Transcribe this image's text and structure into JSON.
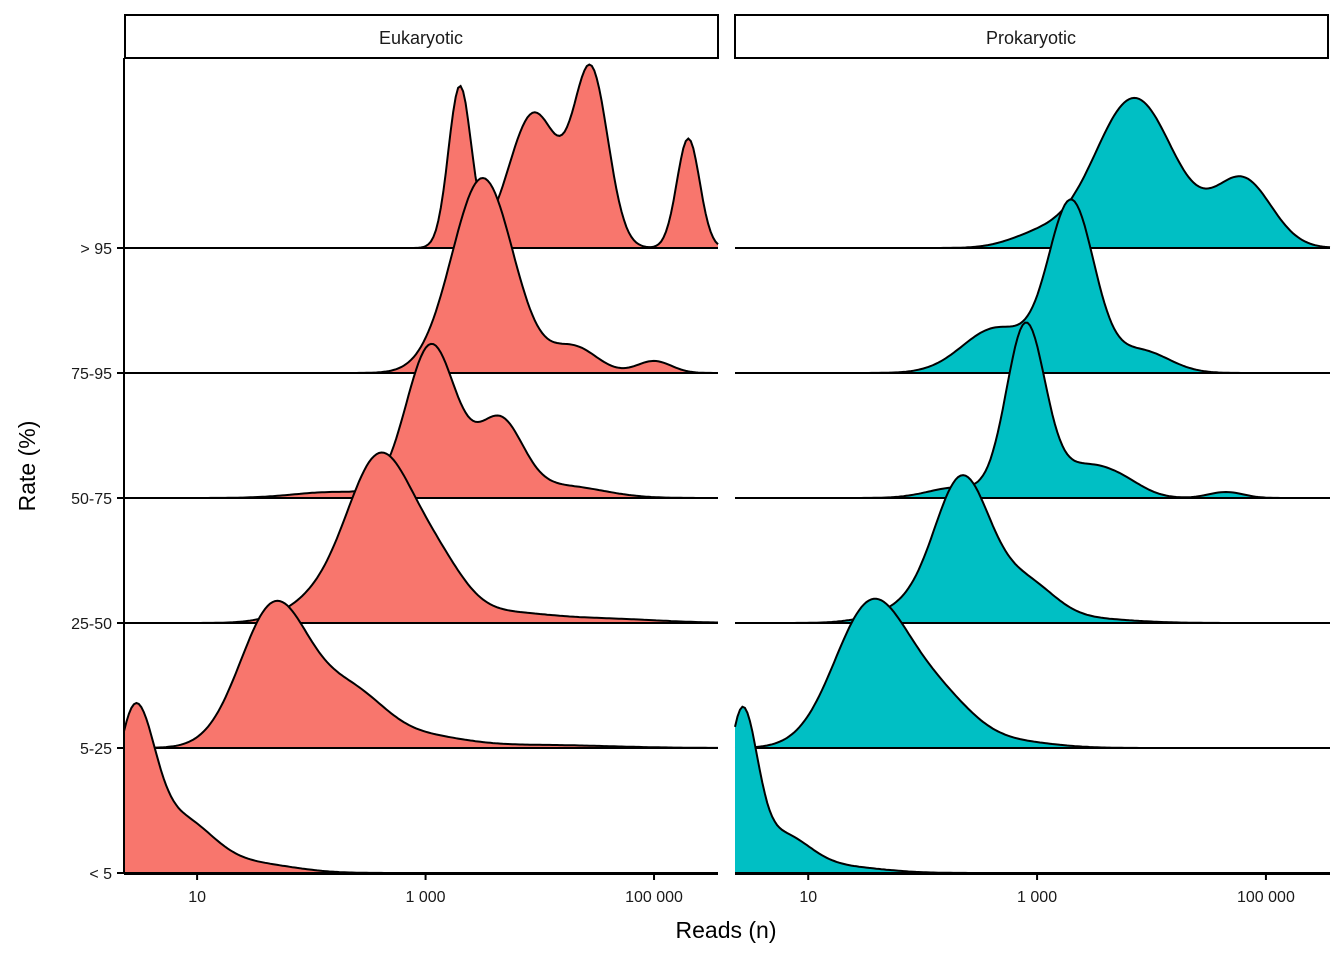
{
  "chart_data": {
    "type": "ridgeline-density",
    "title": "",
    "xlabel": "Reads (n)",
    "ylabel": "Rate (%)",
    "x_scale": "log10",
    "x_ticks": [
      {
        "value": 10,
        "label": "10"
      },
      {
        "value": 1000,
        "label": "1 000"
      },
      {
        "value": 100000,
        "label": "100 000"
      }
    ],
    "x_log_range": [
      0.36,
      5.56
    ],
    "categories": [
      "< 5",
      "5-25",
      "25-50",
      "50-75",
      "75-95",
      "> 95"
    ],
    "facets": [
      {
        "name": "Eukaryotic",
        "color": "#F8766D",
        "series": [
          {
            "category": "< 5",
            "peak_reads": 3,
            "components": [
              [
                0.45,
                0.17,
                1.0
              ],
              [
                0.85,
                0.28,
                0.35
              ],
              [
                1.5,
                0.35,
                0.06
              ]
            ]
          },
          {
            "category": "5-25",
            "peak_reads": 50,
            "components": [
              [
                1.68,
                0.3,
                0.95
              ],
              [
                2.35,
                0.3,
                0.35
              ],
              [
                3.0,
                0.35,
                0.07
              ],
              [
                4.0,
                0.6,
                0.02
              ]
            ]
          },
          {
            "category": "25-50",
            "peak_reads": 400,
            "components": [
              [
                2.6,
                0.28,
                1.05
              ],
              [
                3.1,
                0.25,
                0.35
              ],
              [
                2.1,
                0.3,
                0.15
              ],
              [
                3.7,
                0.35,
                0.06
              ],
              [
                4.5,
                0.5,
                0.03
              ]
            ]
          },
          {
            "category": "50-75",
            "peak_reads": 1200,
            "components": [
              [
                3.05,
                0.22,
                1.02
              ],
              [
                3.65,
                0.2,
                0.5
              ],
              [
                4.2,
                0.35,
                0.08
              ],
              [
                2.2,
                0.35,
                0.04
              ]
            ]
          },
          {
            "category": "75-95",
            "peak_reads": 3500,
            "components": [
              [
                3.5,
                0.27,
                1.3
              ],
              [
                4.3,
                0.2,
                0.17
              ],
              [
                5.0,
                0.15,
                0.08
              ]
            ]
          },
          {
            "category": "> 95",
            "peak_reads": 20000,
            "components": [
              [
                3.3,
                0.1,
                1.07
              ],
              [
                3.95,
                0.22,
                0.9
              ],
              [
                4.45,
                0.15,
                1.15
              ],
              [
                5.3,
                0.1,
                0.73
              ]
            ]
          }
        ]
      },
      {
        "name": "Prokaryotic",
        "color": "#00BFC4",
        "series": [
          {
            "category": "< 5",
            "peak_reads": 2.5,
            "components": [
              [
                0.42,
                0.13,
                1.0
              ],
              [
                0.75,
                0.25,
                0.25
              ],
              [
                1.3,
                0.35,
                0.04
              ]
            ]
          },
          {
            "category": "5-25",
            "peak_reads": 35,
            "components": [
              [
                1.55,
                0.32,
                0.95
              ],
              [
                2.15,
                0.3,
                0.3
              ],
              [
                2.8,
                0.35,
                0.04
              ]
            ]
          },
          {
            "category": "25-50",
            "peak_reads": 220,
            "components": [
              [
                2.35,
                0.24,
                0.93
              ],
              [
                2.9,
                0.25,
                0.25
              ],
              [
                1.9,
                0.3,
                0.1
              ],
              [
                3.4,
                0.4,
                0.03
              ]
            ]
          },
          {
            "category": "50-75",
            "peak_reads": 800,
            "components": [
              [
                2.9,
                0.17,
                1.14
              ],
              [
                3.4,
                0.25,
                0.2
              ],
              [
                2.3,
                0.25,
                0.07
              ],
              [
                3.75,
                0.2,
                0.08
              ],
              [
                4.65,
                0.15,
                0.04
              ]
            ]
          },
          {
            "category": "75-95",
            "peak_reads": 2000,
            "components": [
              [
                3.3,
                0.2,
                1.12
              ],
              [
                2.65,
                0.3,
                0.3
              ],
              [
                3.9,
                0.25,
                0.15
              ]
            ]
          },
          {
            "category": "> 95",
            "peak_reads": 7000,
            "components": [
              [
                3.85,
                0.35,
                1.0
              ],
              [
                4.8,
                0.25,
                0.45
              ],
              [
                3.0,
                0.25,
                0.08
              ]
            ]
          }
        ]
      }
    ],
    "legend": "none",
    "grid": false
  }
}
